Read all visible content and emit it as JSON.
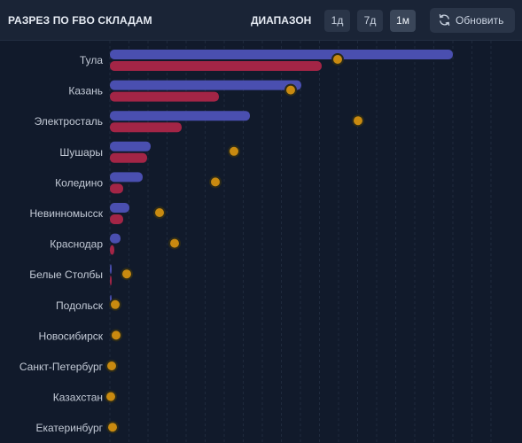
{
  "header": {
    "title": "РАЗРЕЗ ПО FBO СКЛАДАМ",
    "range_label": "ДИАПАЗОН",
    "range_options": [
      "1д",
      "7д",
      "1м"
    ],
    "selected_range": "1м",
    "refresh_label": "Обновить"
  },
  "colors": {
    "series_blue": "#4a4fb0",
    "series_red": "#a32546",
    "marker": "#c98a10",
    "marker_stroke": "#2b2a1a",
    "grid": "#1f2a3d"
  },
  "chart_data": {
    "type": "bar",
    "orientation": "horizontal",
    "categories": [
      "Тула",
      "Казань",
      "Электросталь",
      "Шушары",
      "Коледино",
      "Невинномысск",
      "Краснодар",
      "Белые Столбы",
      "Подольск",
      "Новосибирск",
      "Санкт-Петербург",
      "Казахстан",
      "Екатеринбург"
    ],
    "series": [
      {
        "type": "bar",
        "values": [
          387,
          216,
          158,
          46,
          37,
          22,
          12,
          2,
          1,
          0,
          0,
          0,
          0
        ]
      },
      {
        "type": "bar",
        "values": [
          239,
          123,
          81,
          42,
          15,
          15,
          5,
          1,
          0,
          0,
          0,
          0,
          0
        ]
      },
      {
        "type": "marker",
        "values": [
          257,
          204,
          280,
          140,
          119,
          56,
          73,
          19,
          6,
          7,
          2,
          1,
          3
        ]
      }
    ],
    "xlim": [
      0,
      450
    ],
    "grid": true,
    "legend": "none"
  }
}
